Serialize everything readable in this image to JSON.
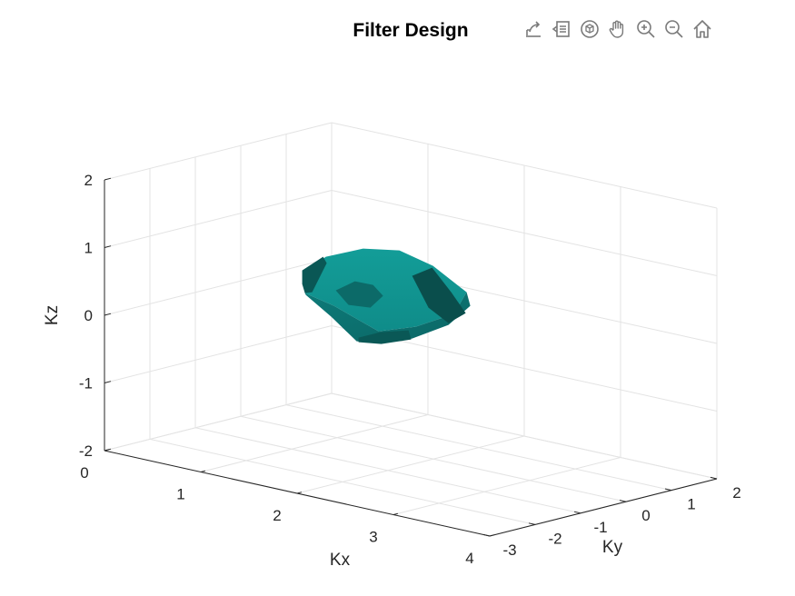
{
  "toolbar": {
    "buttons": [
      {
        "name": "export-icon"
      },
      {
        "name": "brush-data-icon"
      },
      {
        "name": "rotate-3d-icon"
      },
      {
        "name": "pan-hand-icon"
      },
      {
        "name": "zoom-in-icon"
      },
      {
        "name": "zoom-out-icon"
      },
      {
        "name": "home-icon"
      }
    ]
  },
  "chart_data": {
    "type": "surface3d",
    "title": "Filter Design",
    "xlabel": "Kx",
    "ylabel": "Ky",
    "zlabel": "Kz",
    "xlim": [
      0,
      4
    ],
    "ylim": [
      -3,
      2
    ],
    "zlim": [
      -2,
      2
    ],
    "x_ticks": [
      "0",
      "1",
      "2",
      "3",
      "4"
    ],
    "y_ticks": [
      "-3",
      "-2",
      "-1",
      "0",
      "1",
      "2"
    ],
    "z_ticks": [
      "-2",
      "-1",
      "0",
      "1",
      "2"
    ],
    "grid": true,
    "surface": {
      "shape": "closed blob (isosurface)",
      "color": "#0e9e9a",
      "center": [
        1.6,
        -0.3,
        0.2
      ],
      "extent": {
        "x": [
          0.9,
          2.4
        ],
        "y": [
          -1.2,
          0.6
        ],
        "z": [
          -0.4,
          0.7
        ]
      }
    }
  }
}
